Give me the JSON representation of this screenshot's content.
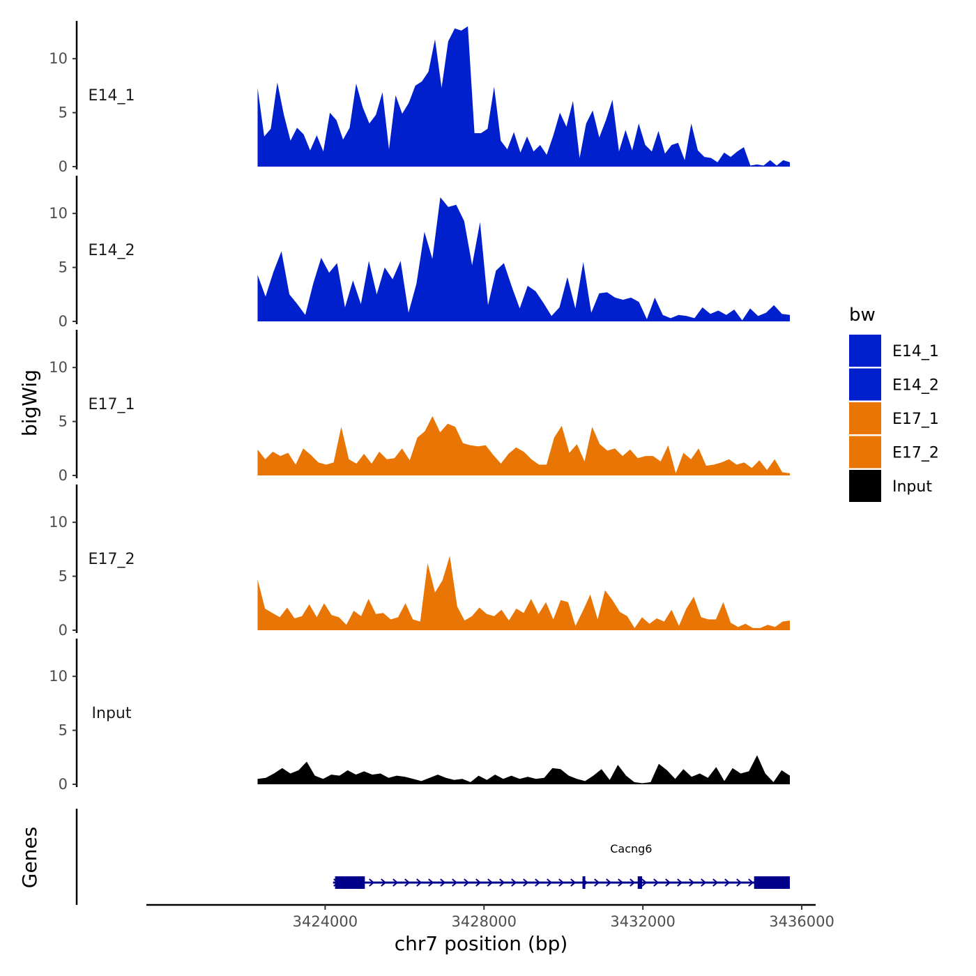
{
  "chart_data": {
    "type": "area",
    "region": {
      "chrom": "chr7",
      "start": 3422300,
      "end": 3435700
    },
    "y_axis_title": "bigWig",
    "genes_axis_title": "Genes",
    "x_axis_title": "chr7 position (bp)",
    "x_ticks": [
      {
        "value": 3424000,
        "label": "3424000"
      },
      {
        "value": 3428000,
        "label": "3428000"
      },
      {
        "value": 3432000,
        "label": "3432000"
      },
      {
        "value": 3436000,
        "label": "3436000"
      }
    ],
    "xlim": [
      3419500,
      3436350
    ],
    "y_ticks": [
      {
        "value": 0,
        "label": "0"
      },
      {
        "value": 5,
        "label": "5"
      },
      {
        "value": 10,
        "label": "10"
      }
    ],
    "ylim": [
      0,
      13.5
    ],
    "legend_title": "bw",
    "series": [
      {
        "name": "E14_1",
        "label": "E14_1",
        "color": "#0020CD",
        "values": [
          7.3,
          2.8,
          3.5,
          7.8,
          4.8,
          2.4,
          3.6,
          3.0,
          1.5,
          2.9,
          1.4,
          5.0,
          4.3,
          2.5,
          3.6,
          7.7,
          5.5,
          4.0,
          4.8,
          6.9,
          1.6,
          6.6,
          4.9,
          5.9,
          7.5,
          7.9,
          8.8,
          11.8,
          7.3,
          11.6,
          12.8,
          12.6,
          13.0,
          3.1,
          3.1,
          3.5,
          7.4,
          2.4,
          1.6,
          3.2,
          1.3,
          2.8,
          1.4,
          2.0,
          1.1,
          2.9,
          5.0,
          3.7,
          6.1,
          0.8,
          4.0,
          5.2,
          2.7,
          4.3,
          6.2,
          1.4,
          3.4,
          1.5,
          4.0,
          2.0,
          1.4,
          3.3,
          1.2,
          2.0,
          2.2,
          0.6,
          4.0,
          1.5,
          0.9,
          0.8,
          0.4,
          1.3,
          0.9,
          1.4,
          1.8,
          0.1,
          0.2,
          0.1,
          0.6,
          0.1,
          0.6,
          0.4
        ]
      },
      {
        "name": "E14_2",
        "label": "E14_2",
        "color": "#0020CD",
        "values": [
          4.3,
          2.3,
          4.6,
          6.5,
          2.5,
          1.6,
          0.6,
          3.5,
          5.9,
          4.5,
          5.4,
          1.3,
          3.8,
          1.6,
          5.6,
          2.5,
          5.0,
          3.9,
          5.6,
          0.8,
          3.5,
          8.3,
          5.8,
          11.5,
          10.6,
          10.8,
          9.3,
          5.2,
          9.2,
          1.5,
          4.7,
          5.4,
          3.2,
          1.2,
          3.3,
          2.8,
          1.7,
          0.5,
          1.3,
          4.1,
          1.2,
          5.5,
          0.8,
          2.6,
          2.7,
          2.2,
          2.0,
          2.2,
          1.8,
          0.2,
          2.2,
          0.6,
          0.3,
          0.6,
          0.5,
          0.3,
          1.3,
          0.7,
          1.0,
          0.6,
          1.1,
          0.1,
          1.2,
          0.5,
          0.8,
          1.5,
          0.7,
          0.6
        ]
      },
      {
        "name": "E17_1",
        "label": "E17_1",
        "color": "#E87504",
        "values": [
          2.4,
          1.5,
          2.2,
          1.8,
          2.1,
          1.0,
          2.5,
          1.9,
          1.2,
          1.0,
          1.2,
          4.5,
          1.5,
          1.1,
          2.0,
          1.1,
          2.2,
          1.5,
          1.6,
          2.5,
          1.4,
          3.5,
          4.1,
          5.5,
          4.0,
          4.8,
          4.5,
          3.0,
          2.8,
          2.7,
          2.8,
          1.9,
          1.1,
          2.0,
          2.6,
          2.2,
          1.5,
          1.0,
          1.0,
          3.5,
          4.6,
          2.1,
          2.9,
          1.3,
          4.5,
          2.9,
          2.3,
          2.5,
          1.8,
          2.4,
          1.6,
          1.8,
          1.8,
          1.3,
          2.8,
          0.2,
          2.1,
          1.5,
          2.5,
          0.9,
          1.0,
          1.2,
          1.5,
          1.0,
          1.2,
          0.7,
          1.4,
          0.5,
          1.5,
          0.3,
          0.2
        ]
      },
      {
        "name": "E17_2",
        "label": "E17_2",
        "color": "#E87504",
        "values": [
          4.7,
          2.0,
          1.6,
          1.2,
          2.1,
          1.1,
          1.3,
          2.4,
          1.2,
          2.5,
          1.4,
          1.2,
          0.5,
          1.8,
          1.3,
          2.9,
          1.5,
          1.6,
          1.0,
          1.2,
          2.5,
          1.0,
          0.8,
          6.2,
          3.5,
          4.6,
          6.9,
          2.2,
          0.9,
          1.3,
          2.1,
          1.5,
          1.3,
          1.9,
          0.9,
          2.0,
          1.6,
          2.9,
          1.5,
          2.6,
          1.0,
          2.8,
          2.6,
          0.4,
          1.8,
          3.3,
          1.0,
          3.7,
          2.8,
          1.7,
          1.3,
          0.2,
          1.2,
          0.6,
          1.1,
          0.8,
          1.9,
          0.4,
          2.0,
          3.1,
          1.2,
          1.0,
          1.0,
          2.6,
          0.7,
          0.3,
          0.6,
          0.2,
          0.2,
          0.5,
          0.3,
          0.8,
          0.9
        ]
      },
      {
        "name": "Input",
        "label": "Input",
        "color": "#000000",
        "values": [
          0.5,
          0.6,
          1.0,
          1.5,
          1.0,
          1.3,
          2.1,
          0.8,
          0.5,
          0.9,
          0.8,
          1.3,
          0.9,
          1.2,
          0.9,
          1.0,
          0.6,
          0.8,
          0.7,
          0.5,
          0.3,
          0.6,
          0.9,
          0.6,
          0.4,
          0.5,
          0.2,
          0.8,
          0.4,
          0.9,
          0.5,
          0.8,
          0.5,
          0.7,
          0.5,
          0.6,
          1.5,
          1.4,
          0.8,
          0.5,
          0.3,
          0.8,
          1.4,
          0.4,
          1.8,
          0.8,
          0.2,
          0.1,
          0.2,
          1.9,
          1.3,
          0.5,
          1.4,
          0.7,
          1.0,
          0.6,
          1.6,
          0.3,
          1.5,
          1.0,
          1.2,
          2.7,
          1.0,
          0.2,
          1.3,
          0.8
        ]
      }
    ],
    "gene": {
      "name": "Cacng6",
      "strand": "+",
      "start": 3424200,
      "end": 3435700,
      "color": "#00008B",
      "exons": [
        {
          "start": 3424250,
          "end": 3425000
        },
        {
          "start": 3430480,
          "end": 3430540
        },
        {
          "start": 3431870,
          "end": 3431980
        },
        {
          "start": 3434800,
          "end": 3435700
        }
      ]
    }
  }
}
